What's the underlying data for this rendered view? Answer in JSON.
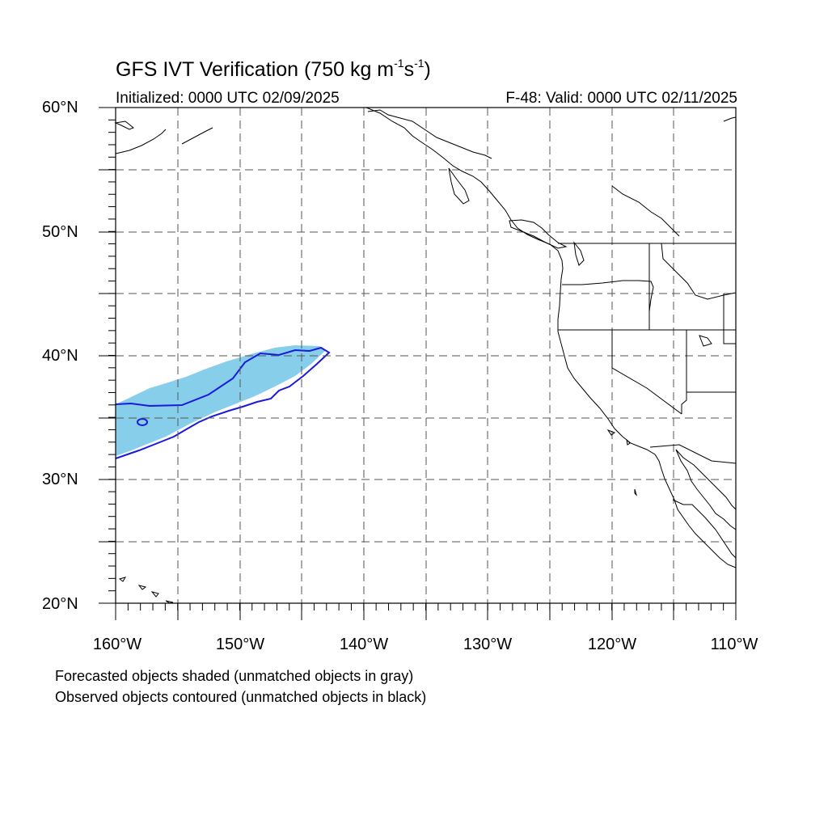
{
  "title": {
    "prefix": "GFS IVT Verification (750 kg m",
    "exp1": "-1",
    "middle": "s",
    "exp2": "-1",
    "suffix": ")"
  },
  "initialized": "Initialized: 0000 UTC 02/09/2025",
  "valid": "F-48: Valid: 0000 UTC 02/11/2025",
  "latitude_labels": [
    "60°N",
    "50°N",
    "40°N",
    "30°N",
    "20°N"
  ],
  "longitude_labels": [
    "160°W",
    "150°W",
    "140°W",
    "130°W",
    "120°W",
    "110°W"
  ],
  "notes": [
    "Forecasted objects shaded (unmatched objects in gray)",
    "Observed objects contoured (unmatched objects in black)"
  ],
  "colors": {
    "forecast_fill": "#87ceeb",
    "observed_contour": "#1a1adc",
    "coastline": "#000000",
    "grid": "#555555"
  }
}
